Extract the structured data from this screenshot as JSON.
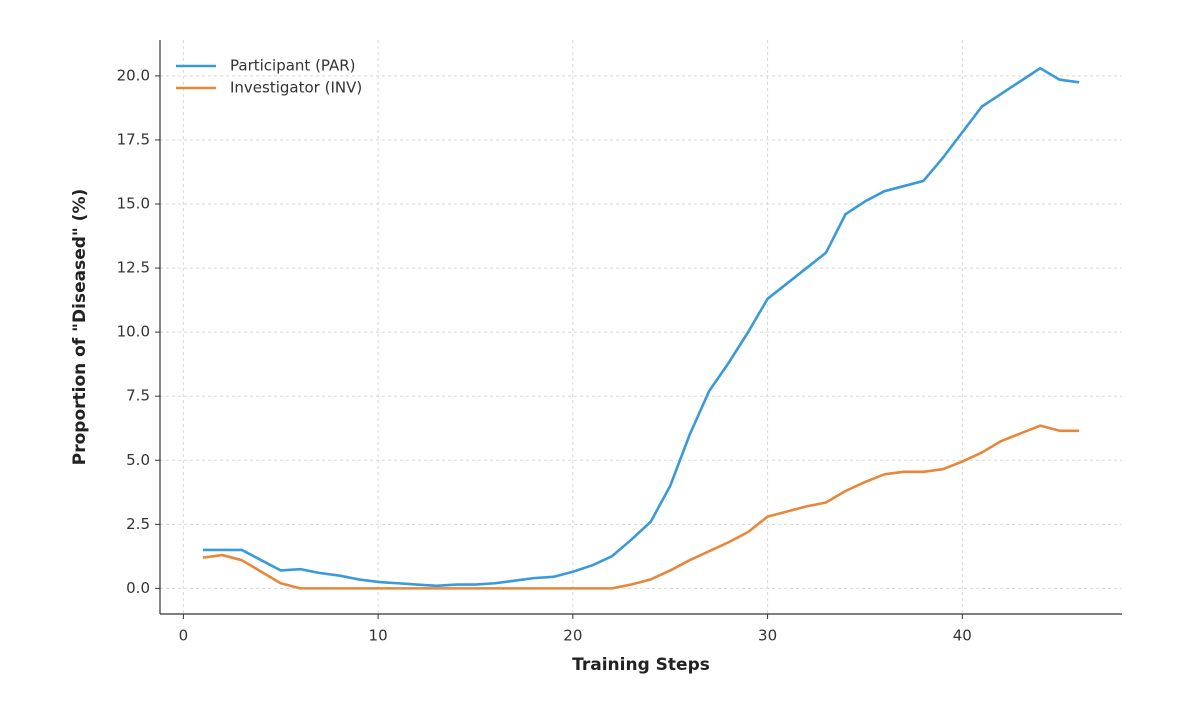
{
  "chart_data": {
    "type": "line",
    "x_label": "Training Steps",
    "y_label": "Proportion of \"Diseased\" (%)",
    "x": [
      1,
      2,
      3,
      4,
      5,
      6,
      7,
      8,
      9,
      10,
      11,
      12,
      13,
      14,
      15,
      16,
      17,
      18,
      19,
      20,
      21,
      22,
      23,
      24,
      25,
      26,
      27,
      28,
      29,
      30,
      31,
      32,
      33,
      34,
      35,
      36,
      37,
      38,
      39,
      40,
      41,
      42,
      43,
      44,
      45,
      46
    ],
    "series": [
      {
        "name": "Participant (PAR)",
        "color": "#3a9ad9",
        "values": [
          1.5,
          1.5,
          1.5,
          1.1,
          0.7,
          0.75,
          0.6,
          0.5,
          0.35,
          0.25,
          0.2,
          0.15,
          0.1,
          0.15,
          0.15,
          0.2,
          0.3,
          0.4,
          0.45,
          0.65,
          0.9,
          1.25,
          1.9,
          2.6,
          4.0,
          6.0,
          7.7,
          8.8,
          10.0,
          11.3,
          11.9,
          12.5,
          13.1,
          14.6,
          15.1,
          15.5,
          15.7,
          15.9,
          16.8,
          17.8,
          18.8,
          19.3,
          19.8,
          20.3,
          19.85,
          19.75
        ]
      },
      {
        "name": "Investigator (INV)",
        "color": "#e8873a",
        "values": [
          1.2,
          1.3,
          1.1,
          0.65,
          0.2,
          0.0,
          0.0,
          0.0,
          0.0,
          0.0,
          0.0,
          0.0,
          0.0,
          0.0,
          0.0,
          0.0,
          0.0,
          0.0,
          0.0,
          0.0,
          0.0,
          0.0,
          0.15,
          0.35,
          0.7,
          1.1,
          1.45,
          1.8,
          2.2,
          2.8,
          3.0,
          3.2,
          3.35,
          3.8,
          4.15,
          4.45,
          4.55,
          4.55,
          4.65,
          4.95,
          5.3,
          5.75,
          6.05,
          6.35,
          6.15,
          6.15
        ]
      }
    ],
    "xlim": [
      -1.2,
      48.2
    ],
    "ylim": [
      -1.0,
      21.4
    ],
    "xticks": [
      0,
      10,
      20,
      30,
      40
    ],
    "yticks": [
      {
        "value": 0,
        "label": "0.0"
      },
      2.5,
      {
        "value": 5,
        "label": "5.0"
      },
      7.5,
      {
        "value": 10,
        "label": "10.0"
      },
      12.5,
      {
        "value": 15,
        "label": "15.0"
      },
      17.5,
      {
        "value": 20,
        "label": "20.0"
      }
    ],
    "grid": true,
    "legend": "upper-left"
  }
}
